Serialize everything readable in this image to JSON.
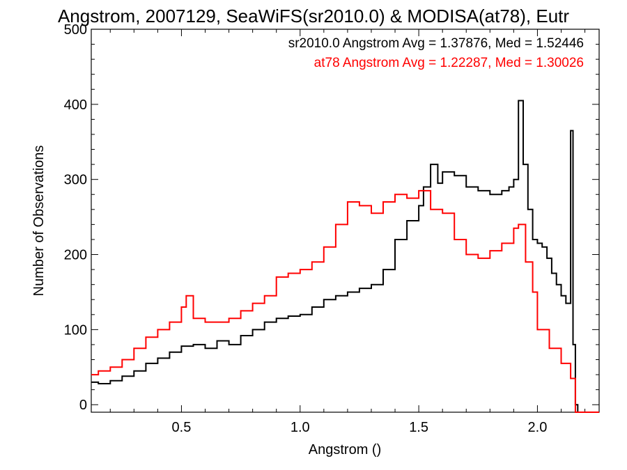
{
  "chart_data": {
    "type": "line",
    "step": true,
    "title": "Angstrom, 2007129, SeaWiFS(sr2010.0) & MODISA(at78), Eutr",
    "xlabel": "Angstrom ()",
    "ylabel": "Number of Observations",
    "xlim": [
      0.12,
      2.26
    ],
    "ylim": [
      -10,
      500
    ],
    "xticks": [
      0.5,
      1.0,
      1.5,
      2.0
    ],
    "xtick_labels": [
      "0.5",
      "1.0",
      "1.5",
      "2.0"
    ],
    "yticks": [
      0,
      100,
      200,
      300,
      400,
      500
    ],
    "ytick_labels": [
      "0",
      "100",
      "200",
      "300",
      "400",
      "500"
    ],
    "grid": false,
    "annotations": [
      {
        "text": "sr2010.0 Angstrom Avg = 1.37876, Med = 1.52446",
        "color": "#000000"
      },
      {
        "text": "at78 Angstrom Avg = 1.22287, Med = 1.30026",
        "color": "#ff0000"
      }
    ],
    "series": [
      {
        "color": "#000000",
        "x": [
          0.12,
          0.15,
          0.2,
          0.25,
          0.3,
          0.35,
          0.4,
          0.45,
          0.5,
          0.55,
          0.6,
          0.65,
          0.7,
          0.75,
          0.8,
          0.85,
          0.9,
          0.95,
          1.0,
          1.05,
          1.1,
          1.15,
          1.2,
          1.25,
          1.3,
          1.35,
          1.4,
          1.45,
          1.5,
          1.52,
          1.55,
          1.58,
          1.6,
          1.65,
          1.7,
          1.75,
          1.8,
          1.85,
          1.88,
          1.9,
          1.92,
          1.94,
          1.96,
          1.98,
          2.0,
          2.02,
          2.04,
          2.06,
          2.08,
          2.1,
          2.12,
          2.14,
          2.15,
          2.16,
          2.17,
          2.2,
          2.26
        ],
        "y": [
          30,
          28,
          32,
          38,
          45,
          55,
          62,
          70,
          78,
          80,
          75,
          85,
          80,
          92,
          100,
          110,
          115,
          118,
          120,
          130,
          140,
          145,
          150,
          155,
          160,
          180,
          220,
          245,
          265,
          290,
          320,
          295,
          310,
          305,
          290,
          285,
          280,
          285,
          290,
          300,
          405,
          320,
          260,
          220,
          215,
          210,
          195,
          175,
          160,
          145,
          135,
          365,
          80,
          0,
          -10,
          -10,
          -10
        ]
      },
      {
        "color": "#ff0000",
        "x": [
          0.12,
          0.15,
          0.2,
          0.25,
          0.3,
          0.35,
          0.4,
          0.45,
          0.5,
          0.52,
          0.55,
          0.6,
          0.65,
          0.7,
          0.75,
          0.8,
          0.85,
          0.9,
          0.95,
          1.0,
          1.05,
          1.1,
          1.15,
          1.2,
          1.25,
          1.3,
          1.35,
          1.4,
          1.45,
          1.5,
          1.55,
          1.6,
          1.65,
          1.7,
          1.75,
          1.8,
          1.85,
          1.9,
          1.92,
          1.95,
          1.98,
          2.0,
          2.05,
          2.1,
          2.14,
          2.16,
          2.26
        ],
        "y": [
          40,
          45,
          50,
          60,
          75,
          90,
          100,
          110,
          130,
          145,
          115,
          110,
          110,
          115,
          125,
          135,
          145,
          170,
          175,
          180,
          190,
          210,
          240,
          270,
          265,
          255,
          270,
          280,
          275,
          285,
          260,
          255,
          220,
          200,
          195,
          205,
          215,
          235,
          240,
          190,
          150,
          100,
          75,
          55,
          35,
          -10,
          -10
        ]
      }
    ]
  }
}
